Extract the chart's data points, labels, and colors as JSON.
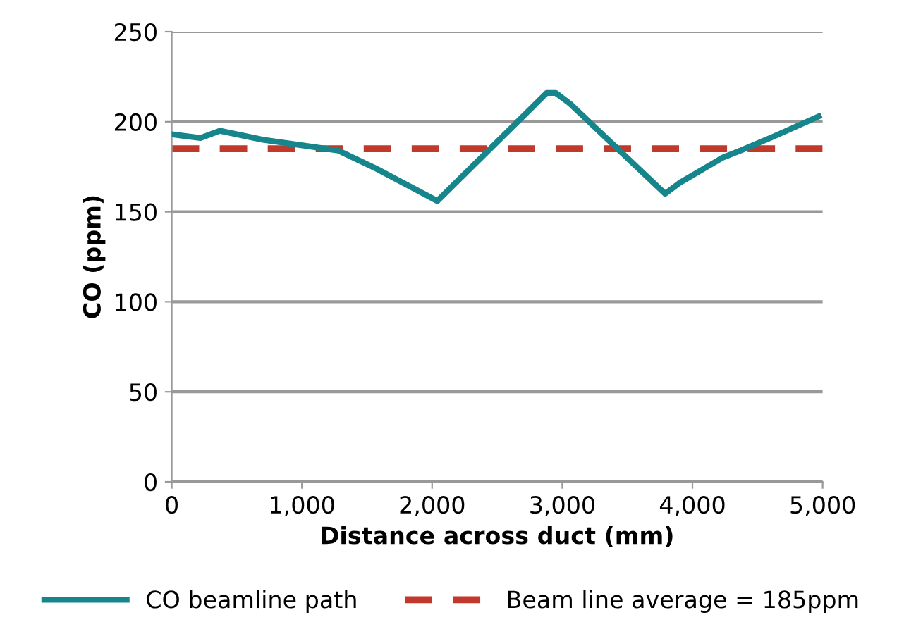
{
  "chart_data": {
    "type": "line",
    "xlabel": "Distance across duct (mm)",
    "ylabel": "CO (ppm)",
    "series": [
      {
        "name": "CO beamline path",
        "color": "#17868c",
        "x": [
          0,
          220,
          370,
          700,
          1280,
          1570,
          2040,
          2880,
          2950,
          3060,
          3790,
          3900,
          4230,
          4370,
          4630,
          4970
        ],
        "values": [
          193,
          191,
          195,
          190,
          184,
          174,
          156,
          216,
          216,
          210,
          160,
          166,
          180,
          184,
          192,
          203
        ]
      }
    ],
    "ref_lines": [
      {
        "axis": "y",
        "value": 185,
        "label": "Beam line average = 185ppm",
        "color": "#c0392b",
        "line_style": "dashed"
      }
    ],
    "xlim": [
      0,
      5000
    ],
    "xticks": [
      {
        "value": 0,
        "label": "0"
      },
      {
        "value": 1000,
        "label": "1,000"
      },
      {
        "value": 2000,
        "label": "2,000"
      },
      {
        "value": 3000,
        "label": "3,000"
      },
      {
        "value": 4000,
        "label": "4,000"
      },
      {
        "value": 5000,
        "label": "5,000"
      }
    ],
    "ylim": [
      0,
      250
    ],
    "yticks": [
      0,
      50,
      100,
      150,
      200,
      250
    ],
    "grid": "y",
    "legend": "bottom",
    "marker": "none",
    "line_style": "solid"
  }
}
